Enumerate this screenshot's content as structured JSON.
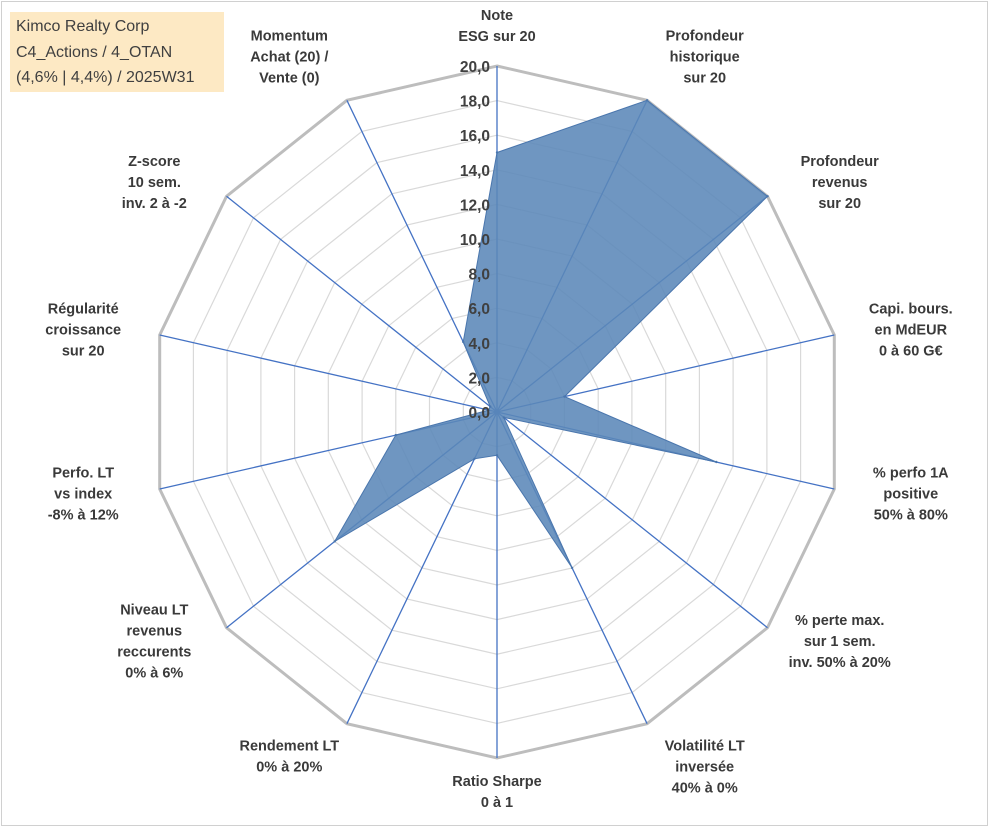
{
  "info": {
    "line1": "Kimco Realty Corp",
    "line2": "C4_Actions / 4_OTAN",
    "line3": "(4,6% | 4,4%) / 2025W31"
  },
  "colors": {
    "grid": "#bfbfbf",
    "spoke": "#4472c4",
    "fill": "#5b87b8",
    "info_bg": "#fde9c4"
  },
  "chart_data": {
    "type": "radar",
    "title": "",
    "rmin": 0,
    "rmax": 20,
    "tick_step": 2,
    "tick_labels": [
      "0,0",
      "2,0",
      "4,0",
      "6,0",
      "8,0",
      "10,0",
      "12,0",
      "14,0",
      "16,0",
      "18,0",
      "20,0"
    ],
    "grid": true,
    "axes": [
      [
        "Note",
        "ESG sur 20"
      ],
      [
        "Profondeur",
        "historique",
        "sur 20"
      ],
      [
        "Profondeur",
        "revenus",
        "sur 20"
      ],
      [
        "Capi. bours.",
        "en MdEUR",
        "0 à 60 G€"
      ],
      [
        "% perfo 1A",
        "positive",
        "50% à 80%"
      ],
      [
        "% perte max.",
        "sur 1 sem.",
        "inv. 50% à 20%"
      ],
      [
        "Volatilité LT",
        "inversée",
        "40% à 0%"
      ],
      [
        "Ratio Sharpe",
        "0 à 1"
      ],
      [
        "Rendement LT",
        "0% à 20%"
      ],
      [
        "Niveau LT",
        "revenus",
        "reccurents",
        "0% à 6%"
      ],
      [
        "Perfo. LT",
        "vs index",
        "-8% à 12%"
      ],
      [
        "Régularité",
        "croissance",
        "sur 20"
      ],
      [
        "Z-score",
        "10 sem.",
        "inv. 2 à -2"
      ],
      [
        "Momentum",
        "Achat (20) /",
        "Vente (0)"
      ]
    ],
    "series": [
      {
        "values": [
          15.0,
          20.0,
          20.0,
          4.0,
          13.0,
          0.5,
          10.0,
          2.5,
          3.0,
          12.0,
          6.0,
          0.5,
          0.5,
          4.5
        ]
      }
    ]
  }
}
